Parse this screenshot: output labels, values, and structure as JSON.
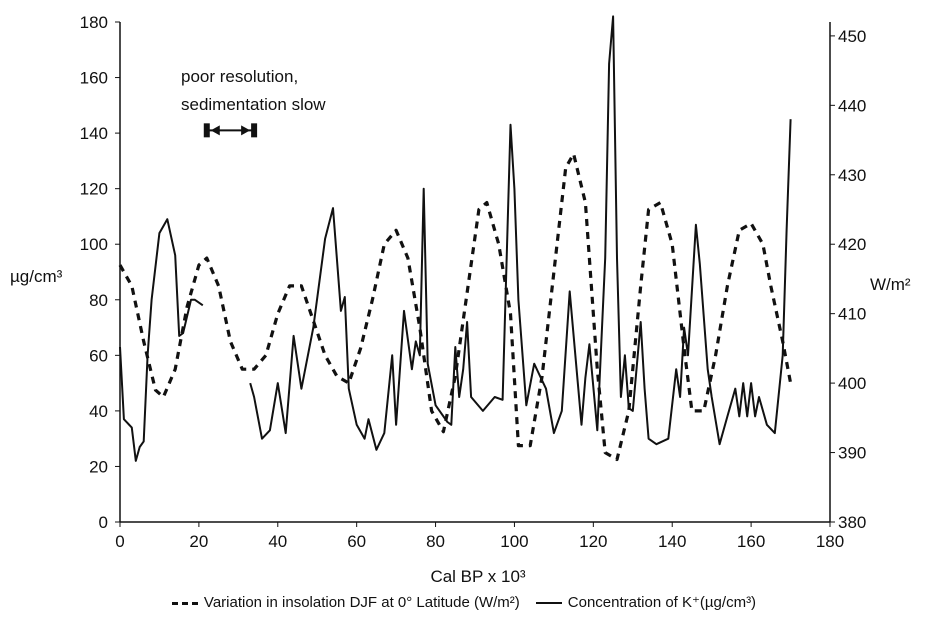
{
  "chart_data": {
    "type": "line",
    "xlabel": "Cal BP x 10³",
    "ylabel_left": "µg/cm³",
    "ylabel_right": "W/m²",
    "xlim": [
      0,
      180
    ],
    "ylim_left": [
      0,
      180
    ],
    "ylim_right": [
      380,
      452
    ],
    "x_ticks": [
      "0",
      "20",
      "40",
      "60",
      "80",
      "100",
      "120",
      "140",
      "160",
      "180"
    ],
    "y_left_ticks": [
      "0",
      "20",
      "40",
      "60",
      "80",
      "100",
      "120",
      "140",
      "160",
      "180"
    ],
    "y_right_ticks": [
      "380",
      "390",
      "400",
      "410",
      "420",
      "430",
      "440",
      "450"
    ],
    "grid": false,
    "legend_position": "bottom",
    "annotation": {
      "lines": [
        "poor resolution,",
        "sedimentation slow"
      ],
      "range": [
        22,
        34
      ],
      "y": 141
    },
    "series": [
      {
        "name": "Variation  in insolation DJF at 0° Latitude (W/m²)",
        "axis": "right",
        "style": "dashed",
        "x": [
          0,
          3,
          6,
          9,
          11,
          14,
          17,
          20,
          22,
          25,
          28,
          31,
          34,
          37,
          40,
          43,
          46,
          49,
          52,
          55,
          58,
          61,
          64,
          67,
          70,
          73,
          76,
          79,
          82,
          85,
          88,
          91,
          93,
          96,
          99,
          101,
          104,
          107,
          110,
          113,
          115,
          118,
          121,
          123,
          126,
          129,
          132,
          134,
          137,
          140,
          143,
          145,
          148,
          151,
          154,
          157,
          160,
          163,
          165,
          168,
          170
        ],
        "values": [
          417,
          414,
          406,
          399,
          398,
          402,
          411,
          417,
          418,
          414,
          406,
          402,
          402,
          404,
          410,
          414,
          414,
          409,
          404,
          401,
          400,
          405,
          412,
          420,
          422,
          418,
          408,
          396,
          393,
          401,
          413,
          425,
          426,
          420,
          410,
          391,
          391,
          401,
          416,
          431,
          433,
          426,
          402,
          390,
          389,
          396,
          414,
          425,
          426,
          420,
          405,
          396,
          396,
          404,
          414,
          422,
          423,
          420,
          414,
          406,
          400
        ]
      },
      {
        "name": "Concentration of K⁺(µg/cm³)",
        "axis": "left",
        "style": "solid",
        "segments": [
          {
            "x": [
              0,
              1,
              3,
              4,
              5,
              6,
              7,
              8,
              10,
              12,
              14,
              15,
              16,
              18,
              19,
              21
            ],
            "values": [
              63,
              37,
              34,
              22,
              27,
              29,
              60,
              80,
              104,
              109,
              96,
              67,
              68,
              80,
              80,
              78
            ]
          },
          {
            "x": [
              33,
              34,
              36,
              38,
              40,
              42,
              44,
              46,
              49,
              52,
              54,
              56,
              57,
              58,
              60,
              62,
              63,
              65,
              67,
              69,
              70,
              72,
              74,
              75,
              76,
              77,
              78,
              80,
              83,
              84,
              85,
              86,
              87,
              88,
              89,
              92,
              95,
              97,
              99,
              100,
              101,
              103,
              105,
              106,
              108,
              110,
              112,
              114,
              117,
              118,
              119,
              121,
              123,
              124,
              125,
              126,
              127,
              128,
              129,
              130,
              132,
              133,
              134,
              136,
              139,
              141,
              142,
              143,
              144,
              146,
              147,
              149,
              150,
              152,
              154,
              156,
              157,
              158,
              159,
              160,
              161,
              162,
              164,
              166,
              168,
              169,
              170
            ],
            "values": [
              50,
              45,
              30,
              33,
              50,
              32,
              67,
              48,
              70,
              102,
              113,
              76,
              81,
              48,
              35,
              30,
              37,
              26,
              32,
              60,
              35,
              76,
              55,
              65,
              60,
              120,
              57,
              42,
              36,
              35,
              63,
              45,
              55,
              72,
              45,
              40,
              45,
              44,
              143,
              120,
              80,
              42,
              57,
              54,
              48,
              32,
              40,
              83,
              35,
              52,
              64,
              33,
              95,
              165,
              182,
              95,
              45,
              60,
              41,
              40,
              72,
              48,
              30,
              28,
              30,
              55,
              45,
              70,
              60,
              107,
              93,
              55,
              45,
              28,
              38,
              48,
              38,
              50,
              38,
              50,
              38,
              45,
              35,
              32,
              60,
              105,
              145
            ]
          }
        ]
      }
    ]
  }
}
